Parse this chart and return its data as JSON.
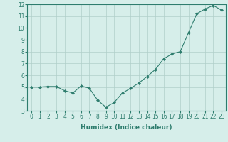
{
  "x": [
    0,
    1,
    2,
    3,
    4,
    5,
    6,
    7,
    8,
    9,
    10,
    11,
    12,
    13,
    14,
    15,
    16,
    17,
    18,
    19,
    20,
    21,
    22,
    23
  ],
  "y": [
    5.0,
    5.0,
    5.05,
    5.05,
    4.7,
    4.5,
    5.1,
    4.9,
    3.9,
    3.3,
    3.7,
    4.5,
    4.9,
    5.35,
    5.9,
    6.5,
    7.4,
    7.8,
    8.0,
    9.6,
    11.2,
    11.6,
    11.9,
    11.5
  ],
  "xlim": [
    -0.5,
    23.5
  ],
  "ylim": [
    3,
    12
  ],
  "yticks": [
    3,
    4,
    5,
    6,
    7,
    8,
    9,
    10,
    11,
    12
  ],
  "xticks": [
    0,
    1,
    2,
    3,
    4,
    5,
    6,
    7,
    8,
    9,
    10,
    11,
    12,
    13,
    14,
    15,
    16,
    17,
    18,
    19,
    20,
    21,
    22,
    23
  ],
  "xlabel": "Humidex (Indice chaleur)",
  "line_color": "#2e7d6e",
  "marker": "D",
  "marker_size": 2.0,
  "bg_color": "#d6eeea",
  "grid_color": "#b0cfc9",
  "tick_label_fontsize": 5.5,
  "xlabel_fontsize": 6.5
}
